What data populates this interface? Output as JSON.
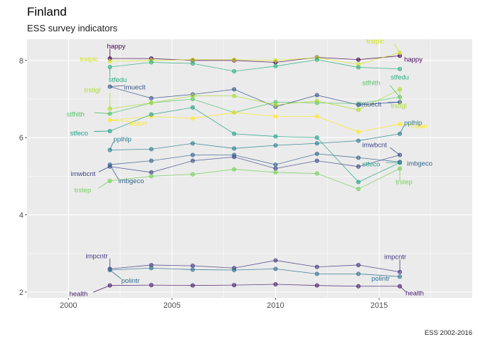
{
  "chart_data": {
    "type": "line",
    "title": "Finland",
    "subtitle": "ESS survey indicators",
    "caption": "ESS 2002-2016",
    "xlabel": "",
    "ylabel": "",
    "xlim": [
      1998,
      2019.5
    ],
    "ylim": [
      1.85,
      8.55
    ],
    "x_ticks": [
      2000,
      2005,
      2010,
      2015
    ],
    "y_ticks": [
      2,
      4,
      6,
      8
    ],
    "grid": true,
    "legend": "none",
    "series": [
      {
        "name": "happy",
        "color": "#440154",
        "x": [
          2002,
          2004,
          2006,
          2008,
          2010,
          2012,
          2014,
          2016
        ],
        "values": [
          8.05,
          8.05,
          8.0,
          8.0,
          7.95,
          8.08,
          8.02,
          8.12
        ]
      },
      {
        "name": "trstplc",
        "color": "#d2e21b",
        "x": [
          2002,
          2004,
          2006,
          2008,
          2010,
          2012,
          2014,
          2016
        ],
        "values": [
          7.98,
          8.0,
          8.02,
          8.02,
          8.0,
          8.07,
          7.9,
          8.2
        ]
      },
      {
        "name": "stfhlth",
        "color": "#54c568",
        "x": [
          2002,
          2004,
          2006,
          2008,
          2010,
          2012,
          2014,
          2016
        ],
        "values": [
          6.62,
          6.9,
          7.0,
          6.65,
          6.92,
          6.9,
          6.88,
          7.05
        ]
      },
      {
        "name": "stfedu",
        "color": "#29af7f",
        "x": [
          2002,
          2004,
          2006,
          2008,
          2010,
          2012,
          2014,
          2016
        ],
        "values": [
          7.83,
          7.95,
          7.92,
          7.72,
          7.85,
          8.02,
          7.82,
          7.78
        ]
      },
      {
        "name": "imueclt",
        "color": "#39568c",
        "x": [
          2002,
          2004,
          2006,
          2008,
          2010,
          2012,
          2014,
          2016
        ],
        "values": [
          7.32,
          7.02,
          7.12,
          7.25,
          6.8,
          7.1,
          6.85,
          6.92
        ]
      },
      {
        "name": "trstlgl",
        "color": "#addc30",
        "x": [
          2002,
          2004,
          2006,
          2008,
          2010,
          2012,
          2014,
          2016
        ],
        "values": [
          6.75,
          6.9,
          7.08,
          7.08,
          6.85,
          6.95,
          6.72,
          7.25
        ]
      },
      {
        "name": "trstun",
        "color": "#fde725",
        "x": [
          2002,
          2004,
          2006,
          2008,
          2010,
          2012,
          2014,
          2016
        ],
        "values": [
          6.45,
          6.55,
          6.5,
          6.65,
          6.55,
          6.55,
          6.15,
          6.35
        ]
      },
      {
        "name": "stfeco",
        "color": "#20a386",
        "x": [
          2002,
          2004,
          2006,
          2008,
          2010,
          2012,
          2014,
          2016
        ],
        "values": [
          6.17,
          6.6,
          6.78,
          6.1,
          6.03,
          6.0,
          4.85,
          5.35
        ]
      },
      {
        "name": "pplhlp",
        "color": "#287d8e",
        "x": [
          2002,
          2004,
          2006,
          2008,
          2010,
          2012,
          2014,
          2016
        ],
        "values": [
          5.68,
          5.7,
          5.85,
          5.72,
          5.8,
          5.85,
          5.92,
          6.1
        ]
      },
      {
        "name": "imwbcnt",
        "color": "#404688",
        "x": [
          2002,
          2004,
          2006,
          2008,
          2010,
          2012,
          2014,
          2016
        ],
        "values": [
          5.25,
          5.1,
          5.4,
          5.5,
          5.2,
          5.4,
          5.25,
          5.55
        ]
      },
      {
        "name": "imbgeco",
        "color": "#33638d",
        "x": [
          2002,
          2004,
          2006,
          2008,
          2010,
          2012,
          2014,
          2016
        ],
        "values": [
          5.3,
          5.4,
          5.55,
          5.55,
          5.3,
          5.58,
          5.48,
          5.37
        ]
      },
      {
        "name": "trstep",
        "color": "#73d055",
        "x": [
          2002,
          2004,
          2006,
          2008,
          2010,
          2012,
          2014,
          2016
        ],
        "values": [
          4.88,
          5.0,
          5.05,
          5.18,
          5.1,
          5.07,
          4.67,
          5.2
        ]
      },
      {
        "name": "impcntr",
        "color": "#453781",
        "x": [
          2002,
          2004,
          2006,
          2008,
          2010,
          2012,
          2014,
          2016
        ],
        "values": [
          2.6,
          2.7,
          2.68,
          2.62,
          2.82,
          2.65,
          2.7,
          2.52
        ]
      },
      {
        "name": "polintr",
        "color": "#2d708e",
        "x": [
          2002,
          2004,
          2006,
          2008,
          2010,
          2012,
          2014,
          2016
        ],
        "values": [
          2.57,
          2.62,
          2.58,
          2.57,
          2.6,
          2.47,
          2.47,
          2.4
        ]
      },
      {
        "name": "health",
        "color": "#481f70",
        "x": [
          2002,
          2004,
          2006,
          2008,
          2010,
          2012,
          2014,
          2016
        ],
        "values": [
          2.17,
          2.18,
          2.17,
          2.18,
          2.2,
          2.17,
          2.15,
          2.15
        ]
      }
    ],
    "annotations": [
      {
        "text": "happy",
        "series": "happy",
        "end": "start"
      },
      {
        "text": "trstplc",
        "series": "trstplc",
        "end": "start"
      },
      {
        "text": "stfedu",
        "series": "stfedu",
        "end": "start"
      },
      {
        "text": "trstlgl",
        "series": "trstlgl",
        "end": "start"
      },
      {
        "text": "imueclt",
        "series": "imueclt",
        "end": "start"
      },
      {
        "text": "stfhlth",
        "series": "stfhlth",
        "end": "start"
      },
      {
        "text": "trstun",
        "series": "trstun",
        "end": "start"
      },
      {
        "text": "stfeco",
        "series": "stfeco",
        "end": "start"
      },
      {
        "text": "pplhlp",
        "series": "pplhlp",
        "end": "start"
      },
      {
        "text": "imwbcnt",
        "series": "imwbcnt",
        "end": "start"
      },
      {
        "text": "imbgeco",
        "series": "imbgeco",
        "end": "start"
      },
      {
        "text": "trstep",
        "series": "trstep",
        "end": "start"
      },
      {
        "text": "impcntr",
        "series": "impcntr",
        "end": "start"
      },
      {
        "text": "polintr",
        "series": "polintr",
        "end": "start"
      },
      {
        "text": "health",
        "series": "health",
        "end": "start"
      },
      {
        "text": "trstplc",
        "series": "trstplc",
        "end": "end"
      },
      {
        "text": "happy",
        "series": "happy",
        "end": "end"
      },
      {
        "text": "stfhlth",
        "series": "stfhlth",
        "end": "end"
      },
      {
        "text": "stfedu",
        "series": "stfedu",
        "end": "end"
      },
      {
        "text": "imueclt",
        "series": "imueclt",
        "end": "end"
      },
      {
        "text": "trstlgl",
        "series": "trstlgl",
        "end": "end"
      },
      {
        "text": "trstun",
        "series": "trstun",
        "end": "end"
      },
      {
        "text": "pplhlp",
        "series": "pplhlp",
        "end": "end"
      },
      {
        "text": "imwbcnt",
        "series": "imwbcnt",
        "end": "end"
      },
      {
        "text": "stfeco",
        "series": "stfeco",
        "end": "end"
      },
      {
        "text": "imbgeco",
        "series": "imbgeco",
        "end": "end"
      },
      {
        "text": "trstep",
        "series": "trstep",
        "end": "end"
      },
      {
        "text": "impcntr",
        "series": "impcntr",
        "end": "end"
      },
      {
        "text": "polintr",
        "series": "polintr",
        "end": "end"
      },
      {
        "text": "health",
        "series": "health",
        "end": "end"
      }
    ]
  }
}
